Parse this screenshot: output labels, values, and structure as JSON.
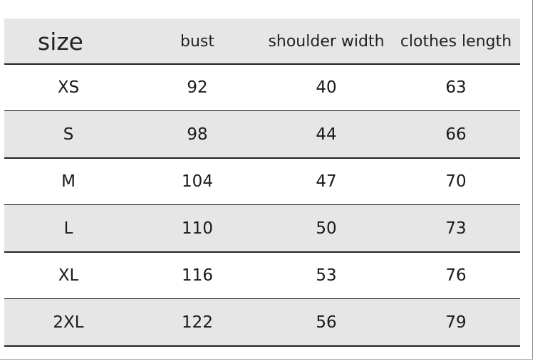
{
  "table": {
    "header": [
      "size",
      "bust",
      "shoulder width",
      "clothes length"
    ],
    "rows": [
      [
        "XS",
        92,
        40,
        63
      ],
      [
        "S",
        98,
        44,
        66
      ],
      [
        "M",
        104,
        47,
        70
      ],
      [
        "L",
        110,
        50,
        73
      ],
      [
        "XL",
        116,
        53,
        76
      ],
      [
        "2XL",
        122,
        56,
        79
      ]
    ]
  }
}
